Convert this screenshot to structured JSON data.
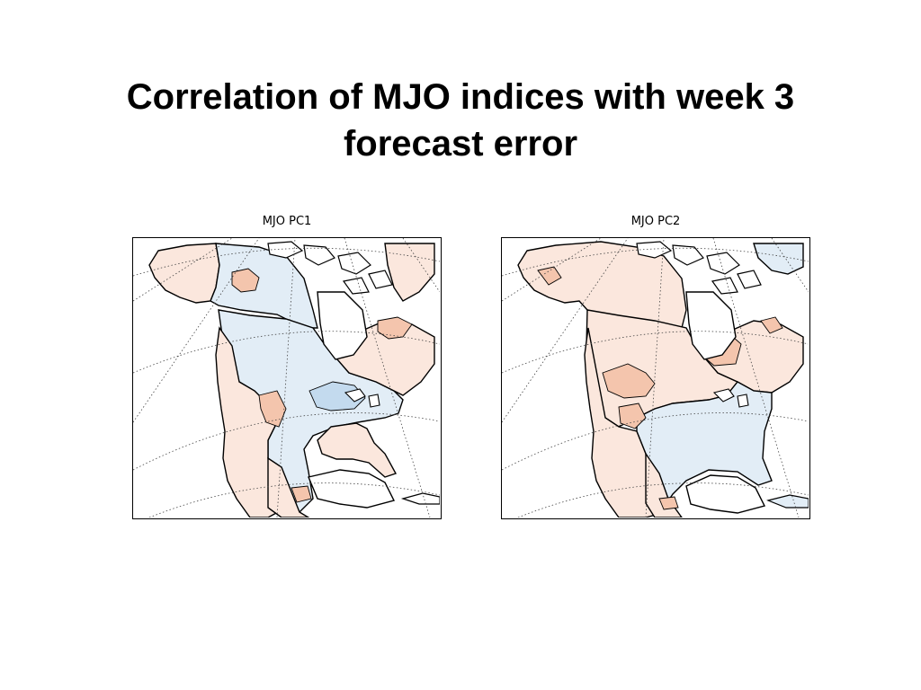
{
  "slide": {
    "title_line1": "Correlation of MJO indices with week 3",
    "title_line2": "forecast error"
  },
  "maps": [
    {
      "caption": "MJO PC1"
    },
    {
      "caption": "MJO PC2"
    }
  ],
  "colors": {
    "positive_light": "#fbe7dd",
    "positive_medium": "#f4c5ad",
    "negative_light": "#e2edf6",
    "negative_medium": "#c3daee",
    "coastline": "#000000",
    "gridline": "#444444"
  }
}
